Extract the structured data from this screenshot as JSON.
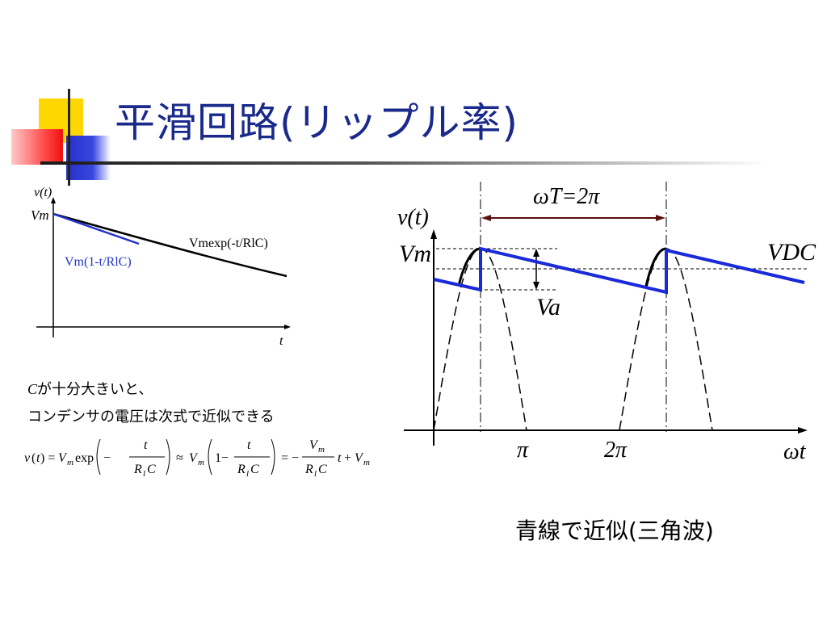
{
  "slide": {
    "title": "平滑回路(リップル率)",
    "caption": "青線で近似(三角波)"
  },
  "notes": {
    "line1_var": "C",
    "line1_rest": "が十分大きいと、",
    "line2": "コンデンサの電圧は次式で近似できる"
  },
  "small_graph": {
    "y_axis_label": "v(t)",
    "y_tick_label": "Vm",
    "x_axis_label": "t",
    "curve_exact_label": "Vmexp(-t/RlC)",
    "curve_linear_label": "Vm(1-t/RlC)",
    "colors": {
      "exact": "#000000",
      "linear": "#2233cc"
    }
  },
  "formula": "v(t) = Vm exp(−t/RlC) ≈ Vm(1 − t/RlC) = −(Vm/RlC) t + Vm",
  "ripple_graph": {
    "y_axis_label": "v(t)",
    "x_axis_label": "ωt",
    "vm_label": "Vm",
    "vdc_label": "VDC",
    "va_label": "Va",
    "period_label": "ωT=2π",
    "x_ticks": [
      "π",
      "2π"
    ],
    "colors": {
      "approx": "#1a2ad8",
      "arrow": "#5a0f0f"
    }
  }
}
